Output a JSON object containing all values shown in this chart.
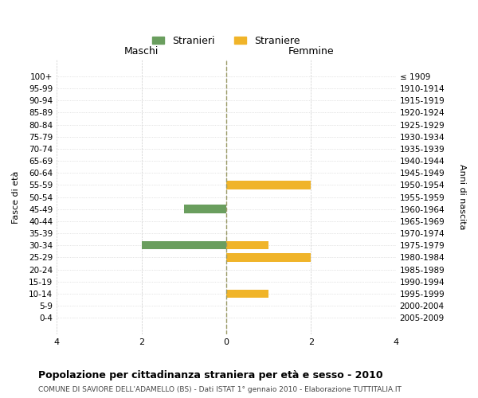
{
  "age_groups": [
    "0-4",
    "5-9",
    "10-14",
    "15-19",
    "20-24",
    "25-29",
    "30-34",
    "35-39",
    "40-44",
    "45-49",
    "50-54",
    "55-59",
    "60-64",
    "65-69",
    "70-74",
    "75-79",
    "80-84",
    "85-89",
    "90-94",
    "95-99",
    "100+"
  ],
  "birth_years": [
    "2005-2009",
    "2000-2004",
    "1995-1999",
    "1990-1994",
    "1985-1989",
    "1980-1984",
    "1975-1979",
    "1970-1974",
    "1965-1969",
    "1960-1964",
    "1955-1959",
    "1950-1954",
    "1945-1949",
    "1940-1944",
    "1935-1939",
    "1930-1934",
    "1925-1929",
    "1920-1924",
    "1915-1919",
    "1910-1914",
    "≤ 1909"
  ],
  "males": [
    0,
    0,
    0,
    0,
    0,
    0,
    2,
    0,
    0,
    1,
    0,
    0,
    0,
    0,
    0,
    0,
    0,
    0,
    0,
    0,
    0
  ],
  "females": [
    0,
    0,
    1,
    0,
    0,
    2,
    1,
    0,
    0,
    0,
    0,
    2,
    0,
    0,
    0,
    0,
    0,
    0,
    0,
    0,
    0
  ],
  "male_color": "#6a9e5e",
  "female_color": "#f0b429",
  "xlim": 4,
  "title": "Popolazione per cittadinanza straniera per età e sesso - 2010",
  "subtitle": "COMUNE DI SAVIORE DELL'ADAMELLO (BS) - Dati ISTAT 1° gennaio 2010 - Elaborazione TUTTITALIA.IT",
  "ylabel_left": "Fasce di età",
  "ylabel_right": "Anni di nascita",
  "xlabel_left": "Maschi",
  "xlabel_right": "Femmine",
  "legend_male": "Stranieri",
  "legend_female": "Straniere",
  "background_color": "#ffffff",
  "grid_color": "#cccccc",
  "zero_line_color": "#999966",
  "bar_height": 0.7
}
